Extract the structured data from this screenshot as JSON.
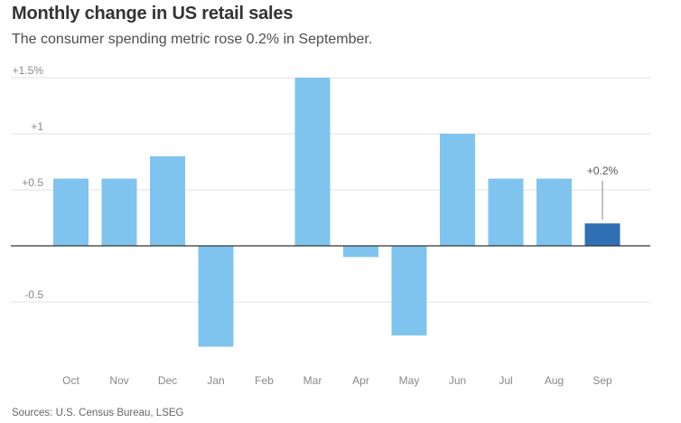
{
  "header": {
    "title": "Monthly change in US retail sales",
    "subtitle": "The consumer spending metric rose 0.2% in September."
  },
  "footer": {
    "source": "Sources: U.S. Census Bureau, LSEG"
  },
  "chart_data": {
    "type": "bar",
    "title": "Monthly change in US retail sales",
    "subtitle": "The consumer spending metric rose 0.2% in September.",
    "xlabel": "",
    "ylabel": "",
    "categories": [
      "Oct",
      "Nov",
      "Dec",
      "Jan",
      "Feb",
      "Mar",
      "Apr",
      "May",
      "Jun",
      "Jul",
      "Aug",
      "Sep"
    ],
    "values": [
      0.6,
      0.6,
      0.8,
      -0.9,
      0.0,
      1.5,
      -0.1,
      -0.8,
      1.0,
      0.6,
      0.6,
      0.2
    ],
    "ylim": [
      -1.1,
      1.5
    ],
    "yticks": [
      {
        "value": 1.5,
        "label": "+1.5%"
      },
      {
        "value": 1.0,
        "label": "+1"
      },
      {
        "value": 0.5,
        "label": "+0.5"
      },
      {
        "value": -0.5,
        "label": "-0.5"
      }
    ],
    "grid": true,
    "highlight_index": 11,
    "annotation": {
      "category": "Sep",
      "text": "+0.2%"
    },
    "colors": {
      "bar": "#7fc4ee",
      "highlight": "#2f6fb3",
      "grid": "#e0e0e0",
      "zero_line": "#333333"
    }
  }
}
